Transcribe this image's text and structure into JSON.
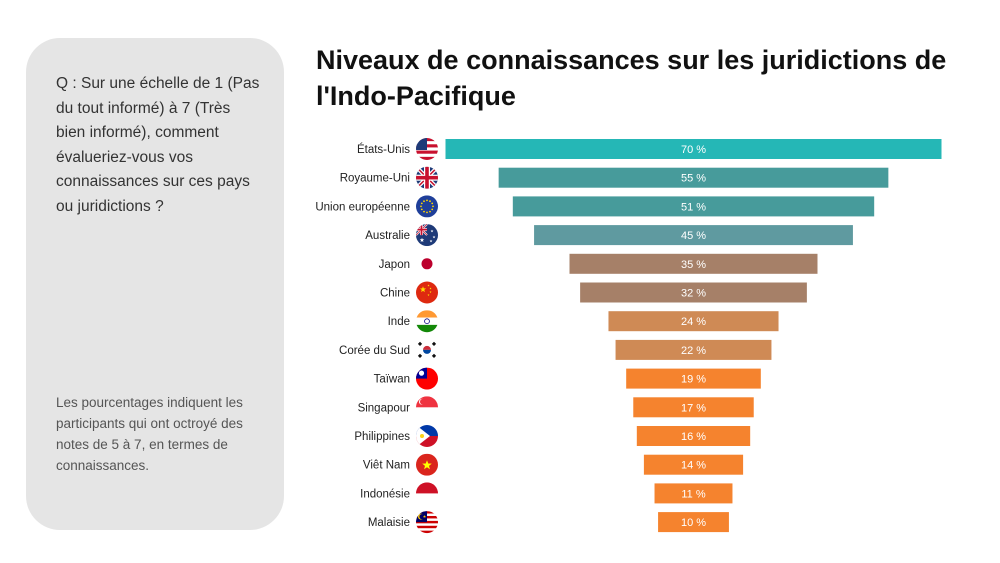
{
  "panel": {
    "question": "Q : Sur une échelle de 1 (Pas du tout informé) à 7 (Très bien informé), comment évalueriez-vous vos connaissances sur ces pays ou juridictions ?",
    "note": "Les pourcentages indiquent les participants qui ont octroyé des notes de 5 à 7, en termes de connaissances."
  },
  "title": "Niveaux de connaissances sur les juridictions de l'Indo-Pacifique",
  "chart_data": {
    "type": "bar",
    "orientation": "horizontal",
    "style": "centered funnel",
    "title": "Niveaux de connaissances sur les juridictions de l'Indo-Pacifique",
    "xlabel": "",
    "ylabel": "",
    "grid": false,
    "categories": [
      "États-Unis",
      "Royaume-Uni",
      "Union européenne",
      "Australie",
      "Japon",
      "Chine",
      "Inde",
      "Corée du Sud",
      "Taïwan",
      "Singapour",
      "Philippines",
      "Viêt Nam",
      "Indonésie",
      "Malaisie"
    ],
    "values": [
      70,
      55,
      51,
      45,
      35,
      32,
      24,
      22,
      19,
      17,
      16,
      14,
      11,
      10
    ],
    "value_labels": [
      "70 %",
      "55 %",
      "51 %",
      "45 %",
      "35 %",
      "32 %",
      "24 %",
      "22 %",
      "19 %",
      "17 %",
      "16 %",
      "14 %",
      "11 %",
      "10 %"
    ],
    "bar_colors": [
      "#25b7b6",
      "#479b9b",
      "#479b9b",
      "#5f9aa0",
      "#a68068",
      "#a68068",
      "#cf8a55",
      "#cf8a55",
      "#f5832e",
      "#f5832e",
      "#f5832e",
      "#f5832e",
      "#f5832e",
      "#f5832e"
    ],
    "flag_icons": [
      "flag-us-icon",
      "flag-uk-icon",
      "flag-eu-icon",
      "flag-au-icon",
      "flag-jp-icon",
      "flag-cn-icon",
      "flag-in-icon",
      "flag-kr-icon",
      "flag-tw-icon",
      "flag-sg-icon",
      "flag-ph-icon",
      "flag-vn-icon",
      "flag-id-icon",
      "flag-my-icon"
    ]
  }
}
